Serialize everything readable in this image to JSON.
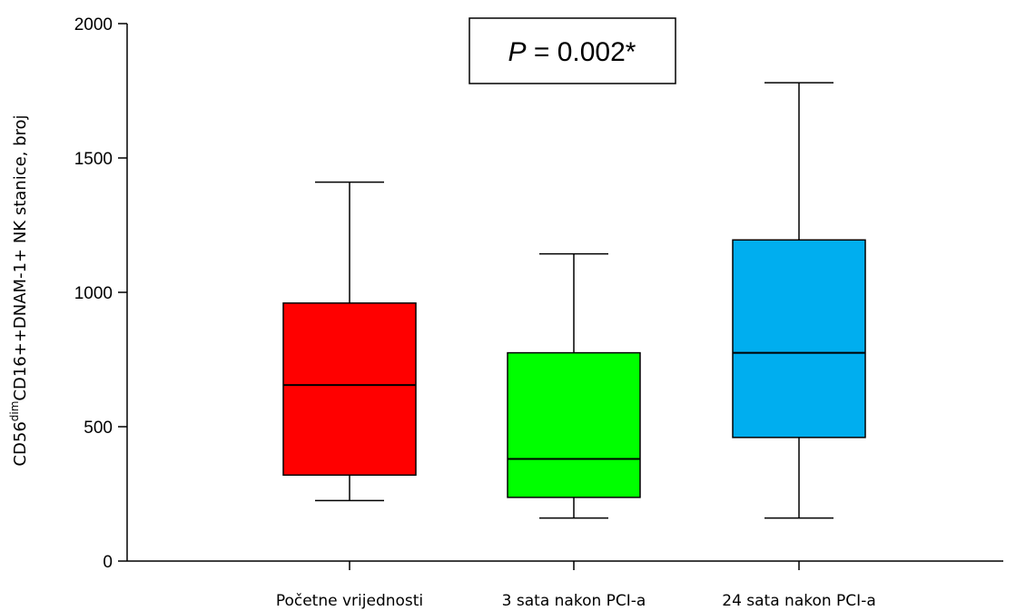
{
  "chart_data": {
    "type": "boxplot",
    "ylabel": {
      "prefix": "CD56",
      "superscript": "dim",
      "suffix": "CD16++DNAM-1+ NK stanice, broj"
    },
    "ylim": [
      0,
      2000
    ],
    "yticks": [
      0,
      500,
      1000,
      1500,
      2000
    ],
    "grid": false,
    "annotation": {
      "italic_part": "P",
      "rest": " = 0.002*"
    },
    "categories": [
      "Početne vrijednosti",
      "3 sata nakon PCI-a",
      "24 sata nakon PCI-a"
    ],
    "boxes": [
      {
        "category": "Početne vrijednosti",
        "whisker_low": 225,
        "q1": 320,
        "median": 655,
        "q3": 960,
        "whisker_high": 1410,
        "color": "#ff0000"
      },
      {
        "category": "3 sata nakon PCI-a",
        "whisker_low": 160,
        "q1": 237,
        "median": 380,
        "q3": 775,
        "whisker_high": 1143,
        "color": "#00ff00"
      },
      {
        "category": "24 sata nakon PCI-a",
        "whisker_low": 160,
        "q1": 460,
        "median": 775,
        "q3": 1195,
        "whisker_high": 1780,
        "color": "#00aeef"
      }
    ]
  }
}
